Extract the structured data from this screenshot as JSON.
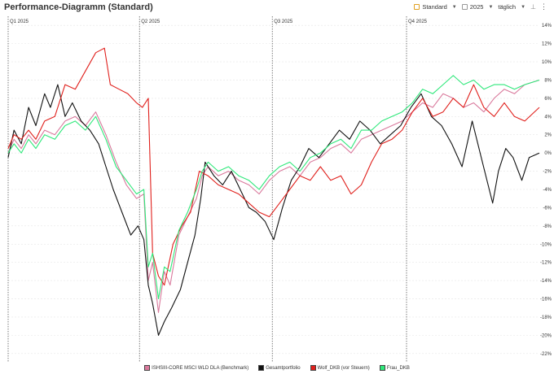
{
  "header": {
    "title": "Performance-Diagramm (Standard)",
    "view_label": "Standard",
    "year_label": "2025",
    "interval_label": "täglich",
    "calendar_icon": "calendar-icon",
    "pin_icon": "pin-icon",
    "menu_icon": "more-vertical-icon"
  },
  "chart_data": {
    "type": "line",
    "title": "Performance-Diagramm (Standard)",
    "x_range": [
      "2025-01-01",
      "2025-12-31"
    ],
    "quarter_labels": [
      "Q1 2025",
      "Q2 2025",
      "Q3 2025",
      "Q4 2025"
    ],
    "ylim": [
      -23,
      15
    ],
    "yticks": [
      14,
      12,
      10,
      8,
      6,
      4,
      2,
      0,
      -2,
      -4,
      -6,
      -8,
      -10,
      -12,
      -14,
      -16,
      -18,
      -20,
      -22
    ],
    "ytick_labels": [
      "14%",
      "12%",
      "10%",
      "8%",
      "6%",
      "4%",
      "2%",
      "0%",
      "-2%",
      "-4%",
      "-6%",
      "-8%",
      "-10%",
      "-12%",
      "-14%",
      "-16%",
      "-18%",
      "-20%",
      "-22%"
    ],
    "grid": true,
    "legend_position": "bottom",
    "series": [
      {
        "name": "ISHSIII-CORE MSCI WLD DLA (Benchmark)",
        "color": "#d9799c",
        "points": [
          [
            "2025-01-01",
            0.0
          ],
          [
            "2025-01-05",
            1.5
          ],
          [
            "2025-01-10",
            0.5
          ],
          [
            "2025-01-15",
            2.0
          ],
          [
            "2025-01-20",
            1.0
          ],
          [
            "2025-01-26",
            2.5
          ],
          [
            "2025-02-02",
            2.0
          ],
          [
            "2025-02-09",
            3.5
          ],
          [
            "2025-02-16",
            4.0
          ],
          [
            "2025-02-23",
            3.0
          ],
          [
            "2025-03-02",
            4.5
          ],
          [
            "2025-03-09",
            2.0
          ],
          [
            "2025-03-16",
            -1.0
          ],
          [
            "2025-03-23",
            -3.5
          ],
          [
            "2025-03-30",
            -5.0
          ],
          [
            "2025-04-04",
            -4.5
          ],
          [
            "2025-04-07",
            -14.0
          ],
          [
            "2025-04-10",
            -12.0
          ],
          [
            "2025-04-14",
            -17.5
          ],
          [
            "2025-04-18",
            -13.0
          ],
          [
            "2025-04-22",
            -14.5
          ],
          [
            "2025-04-28",
            -9.0
          ],
          [
            "2025-05-04",
            -7.0
          ],
          [
            "2025-05-10",
            -5.0
          ],
          [
            "2025-05-14",
            -2.5
          ],
          [
            "2025-05-18",
            -1.5
          ],
          [
            "2025-05-25",
            -2.5
          ],
          [
            "2025-06-01",
            -2.0
          ],
          [
            "2025-06-08",
            -3.0
          ],
          [
            "2025-06-15",
            -3.5
          ],
          [
            "2025-06-22",
            -4.5
          ],
          [
            "2025-06-29",
            -3.0
          ],
          [
            "2025-07-06",
            -2.0
          ],
          [
            "2025-07-13",
            -1.5
          ],
          [
            "2025-07-20",
            -2.5
          ],
          [
            "2025-07-27",
            -1.0
          ],
          [
            "2025-08-03",
            -0.5
          ],
          [
            "2025-08-10",
            0.5
          ],
          [
            "2025-08-17",
            1.0
          ],
          [
            "2025-08-24",
            0.0
          ],
          [
            "2025-08-31",
            1.5
          ],
          [
            "2025-09-07",
            2.0
          ],
          [
            "2025-09-14",
            2.5
          ],
          [
            "2025-09-21",
            3.0
          ],
          [
            "2025-09-28",
            3.5
          ],
          [
            "2025-10-05",
            4.5
          ],
          [
            "2025-10-12",
            5.5
          ],
          [
            "2025-10-19",
            5.0
          ],
          [
            "2025-10-26",
            6.5
          ],
          [
            "2025-11-02",
            6.0
          ],
          [
            "2025-11-09",
            5.0
          ],
          [
            "2025-11-16",
            5.5
          ],
          [
            "2025-11-23",
            4.5
          ],
          [
            "2025-11-30",
            6.0
          ],
          [
            "2025-12-07",
            7.0
          ],
          [
            "2025-12-14",
            6.5
          ],
          [
            "2025-12-21",
            7.5
          ],
          [
            "2025-12-31",
            8.0
          ]
        ]
      },
      {
        "name": "Gesamtportfolio",
        "color": "#111111",
        "points": [
          [
            "2025-01-01",
            -0.5
          ],
          [
            "2025-01-05",
            2.5
          ],
          [
            "2025-01-10",
            1.0
          ],
          [
            "2025-01-15",
            5.0
          ],
          [
            "2025-01-20",
            3.0
          ],
          [
            "2025-01-26",
            6.5
          ],
          [
            "2025-01-30",
            5.0
          ],
          [
            "2025-02-04",
            7.5
          ],
          [
            "2025-02-09",
            4.0
          ],
          [
            "2025-02-14",
            5.5
          ],
          [
            "2025-02-20",
            3.5
          ],
          [
            "2025-02-26",
            2.5
          ],
          [
            "2025-03-04",
            1.0
          ],
          [
            "2025-03-09",
            -1.5
          ],
          [
            "2025-03-14",
            -4.0
          ],
          [
            "2025-03-20",
            -6.5
          ],
          [
            "2025-03-26",
            -9.0
          ],
          [
            "2025-03-31",
            -8.0
          ],
          [
            "2025-04-04",
            -9.5
          ],
          [
            "2025-04-07",
            -14.5
          ],
          [
            "2025-04-10",
            -16.5
          ],
          [
            "2025-04-14",
            -20.0
          ],
          [
            "2025-04-18",
            -18.5
          ],
          [
            "2025-04-23",
            -17.0
          ],
          [
            "2025-04-29",
            -15.0
          ],
          [
            "2025-05-04",
            -12.0
          ],
          [
            "2025-05-09",
            -9.0
          ],
          [
            "2025-05-13",
            -5.0
          ],
          [
            "2025-05-16",
            -1.0
          ],
          [
            "2025-05-22",
            -2.5
          ],
          [
            "2025-05-28",
            -3.5
          ],
          [
            "2025-06-03",
            -2.0
          ],
          [
            "2025-06-09",
            -4.0
          ],
          [
            "2025-06-15",
            -6.0
          ],
          [
            "2025-06-20",
            -6.5
          ],
          [
            "2025-06-26",
            -7.5
          ],
          [
            "2025-07-02",
            -9.5
          ],
          [
            "2025-07-08",
            -6.0
          ],
          [
            "2025-07-14",
            -3.0
          ],
          [
            "2025-07-20",
            -1.5
          ],
          [
            "2025-07-26",
            0.5
          ],
          [
            "2025-08-02",
            -0.5
          ],
          [
            "2025-08-09",
            1.0
          ],
          [
            "2025-08-16",
            2.5
          ],
          [
            "2025-08-23",
            1.5
          ],
          [
            "2025-08-30",
            3.5
          ],
          [
            "2025-09-06",
            2.5
          ],
          [
            "2025-09-13",
            1.0
          ],
          [
            "2025-09-20",
            2.0
          ],
          [
            "2025-09-27",
            3.0
          ],
          [
            "2025-10-04",
            5.0
          ],
          [
            "2025-10-11",
            6.5
          ],
          [
            "2025-10-18",
            4.0
          ],
          [
            "2025-10-25",
            3.0
          ],
          [
            "2025-11-01",
            1.0
          ],
          [
            "2025-11-08",
            -1.5
          ],
          [
            "2025-11-15",
            3.5
          ],
          [
            "2025-11-22",
            -1.0
          ],
          [
            "2025-11-29",
            -5.5
          ],
          [
            "2025-12-03",
            -2.0
          ],
          [
            "2025-12-08",
            0.5
          ],
          [
            "2025-12-13",
            -0.5
          ],
          [
            "2025-12-19",
            -3.0
          ],
          [
            "2025-12-24",
            -0.5
          ],
          [
            "2025-12-31",
            0.0
          ]
        ]
      },
      {
        "name": "Wolf_DKB (vor Steuern)",
        "color": "#e0201c",
        "points": [
          [
            "2025-01-01",
            0.5
          ],
          [
            "2025-01-05",
            2.0
          ],
          [
            "2025-01-10",
            1.5
          ],
          [
            "2025-01-15",
            2.5
          ],
          [
            "2025-01-20",
            1.5
          ],
          [
            "2025-01-26",
            3.5
          ],
          [
            "2025-02-02",
            4.0
          ],
          [
            "2025-02-09",
            7.5
          ],
          [
            "2025-02-16",
            7.0
          ],
          [
            "2025-02-23",
            9.0
          ],
          [
            "2025-03-02",
            11.0
          ],
          [
            "2025-03-08",
            11.5
          ],
          [
            "2025-03-12",
            7.5
          ],
          [
            "2025-03-18",
            7.0
          ],
          [
            "2025-03-24",
            6.5
          ],
          [
            "2025-03-30",
            5.5
          ],
          [
            "2025-04-03",
            5.0
          ],
          [
            "2025-04-07",
            6.0
          ],
          [
            "2025-04-10",
            -11.0
          ],
          [
            "2025-04-14",
            -13.5
          ],
          [
            "2025-04-18",
            -14.5
          ],
          [
            "2025-04-24",
            -10.0
          ],
          [
            "2025-04-30",
            -8.0
          ],
          [
            "2025-05-06",
            -6.5
          ],
          [
            "2025-05-12",
            -2.0
          ],
          [
            "2025-05-18",
            -2.5
          ],
          [
            "2025-05-25",
            -3.5
          ],
          [
            "2025-06-01",
            -4.0
          ],
          [
            "2025-06-08",
            -4.5
          ],
          [
            "2025-06-15",
            -5.5
          ],
          [
            "2025-06-22",
            -6.5
          ],
          [
            "2025-06-29",
            -7.0
          ],
          [
            "2025-07-06",
            -5.5
          ],
          [
            "2025-07-13",
            -4.0
          ],
          [
            "2025-07-20",
            -2.5
          ],
          [
            "2025-07-27",
            -3.0
          ],
          [
            "2025-08-03",
            -1.5
          ],
          [
            "2025-08-10",
            -3.0
          ],
          [
            "2025-08-17",
            -2.5
          ],
          [
            "2025-08-24",
            -4.5
          ],
          [
            "2025-08-31",
            -3.5
          ],
          [
            "2025-09-07",
            -1.0
          ],
          [
            "2025-09-14",
            1.0
          ],
          [
            "2025-09-21",
            1.5
          ],
          [
            "2025-09-28",
            2.5
          ],
          [
            "2025-10-05",
            4.5
          ],
          [
            "2025-10-12",
            6.0
          ],
          [
            "2025-10-19",
            4.0
          ],
          [
            "2025-10-26",
            4.5
          ],
          [
            "2025-11-02",
            6.0
          ],
          [
            "2025-11-09",
            5.0
          ],
          [
            "2025-11-16",
            7.5
          ],
          [
            "2025-11-23",
            5.0
          ],
          [
            "2025-11-30",
            4.0
          ],
          [
            "2025-12-07",
            5.5
          ],
          [
            "2025-12-14",
            4.0
          ],
          [
            "2025-12-21",
            3.5
          ],
          [
            "2025-12-31",
            5.0
          ]
        ]
      },
      {
        "name": "Frau_DKB",
        "color": "#2ee87a",
        "points": [
          [
            "2025-01-01",
            0.0
          ],
          [
            "2025-01-05",
            1.0
          ],
          [
            "2025-01-10",
            0.0
          ],
          [
            "2025-01-15",
            1.5
          ],
          [
            "2025-01-20",
            0.5
          ],
          [
            "2025-01-26",
            2.0
          ],
          [
            "2025-02-02",
            1.5
          ],
          [
            "2025-02-09",
            3.0
          ],
          [
            "2025-02-16",
            3.5
          ],
          [
            "2025-02-23",
            2.5
          ],
          [
            "2025-03-02",
            4.0
          ],
          [
            "2025-03-09",
            1.5
          ],
          [
            "2025-03-16",
            -1.5
          ],
          [
            "2025-03-23",
            -3.0
          ],
          [
            "2025-03-30",
            -4.5
          ],
          [
            "2025-04-04",
            -4.0
          ],
          [
            "2025-04-07",
            -12.5
          ],
          [
            "2025-04-10",
            -11.0
          ],
          [
            "2025-04-14",
            -16.0
          ],
          [
            "2025-04-18",
            -12.5
          ],
          [
            "2025-04-22",
            -13.0
          ],
          [
            "2025-04-28",
            -8.5
          ],
          [
            "2025-05-04",
            -6.5
          ],
          [
            "2025-05-10",
            -4.0
          ],
          [
            "2025-05-14",
            -2.0
          ],
          [
            "2025-05-18",
            -1.0
          ],
          [
            "2025-05-25",
            -2.0
          ],
          [
            "2025-06-01",
            -1.5
          ],
          [
            "2025-06-08",
            -2.5
          ],
          [
            "2025-06-15",
            -3.0
          ],
          [
            "2025-06-22",
            -4.0
          ],
          [
            "2025-06-29",
            -2.5
          ],
          [
            "2025-07-06",
            -1.5
          ],
          [
            "2025-07-13",
            -1.0
          ],
          [
            "2025-07-20",
            -2.0
          ],
          [
            "2025-07-27",
            -0.5
          ],
          [
            "2025-08-03",
            0.0
          ],
          [
            "2025-08-10",
            1.0
          ],
          [
            "2025-08-17",
            1.5
          ],
          [
            "2025-08-24",
            0.5
          ],
          [
            "2025-08-31",
            2.5
          ],
          [
            "2025-09-07",
            2.5
          ],
          [
            "2025-09-14",
            3.5
          ],
          [
            "2025-09-21",
            4.0
          ],
          [
            "2025-09-28",
            4.5
          ],
          [
            "2025-10-05",
            5.5
          ],
          [
            "2025-10-12",
            7.0
          ],
          [
            "2025-10-19",
            6.5
          ],
          [
            "2025-10-26",
            7.5
          ],
          [
            "2025-11-02",
            8.5
          ],
          [
            "2025-11-09",
            7.5
          ],
          [
            "2025-11-16",
            8.0
          ],
          [
            "2025-11-23",
            7.0
          ],
          [
            "2025-11-30",
            7.5
          ],
          [
            "2025-12-07",
            7.5
          ],
          [
            "2025-12-14",
            7.0
          ],
          [
            "2025-12-21",
            7.5
          ],
          [
            "2025-12-31",
            8.0
          ]
        ]
      }
    ]
  }
}
